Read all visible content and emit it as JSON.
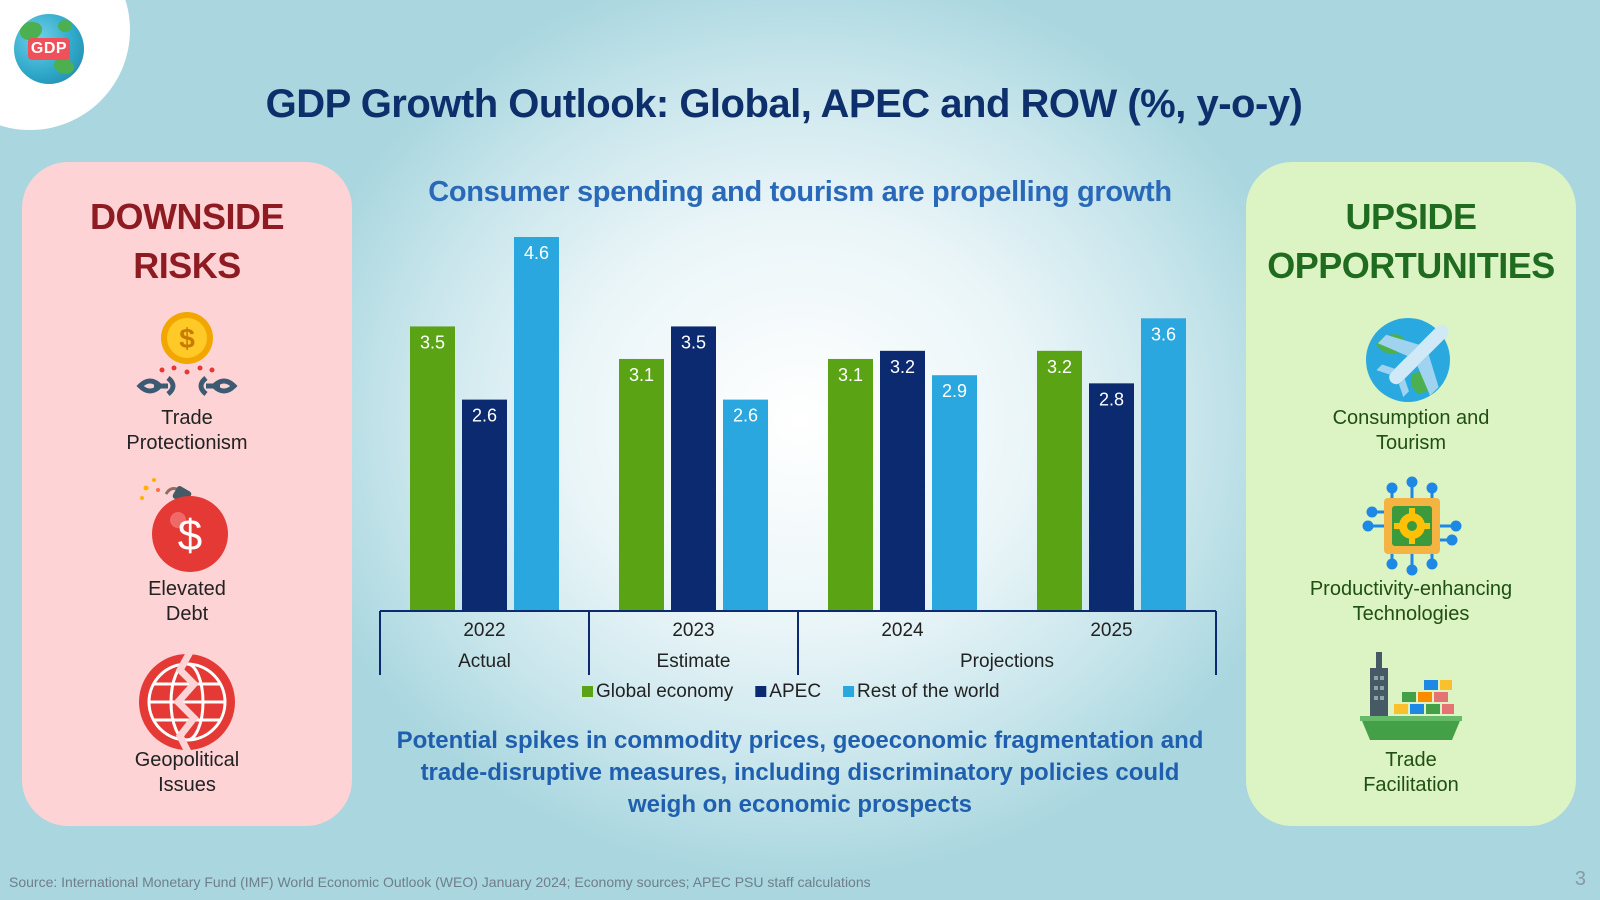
{
  "logo": {
    "text": "GDP"
  },
  "title": "GDP Growth Outlook: Global, APEC and ROW (%, y-o-y)",
  "subtitle": "Consumer spending and tourism are propelling growth",
  "downside": {
    "title_line1": "DOWNSIDE",
    "title_line2": "RISKS",
    "items": [
      {
        "line1": "Trade",
        "line2": "Protectionism",
        "icon": "broken-chain-coin-icon"
      },
      {
        "line1": "Elevated",
        "line2": "Debt",
        "icon": "dollar-bomb-icon"
      },
      {
        "line1": "Geopolitical",
        "line2": "Issues",
        "icon": "cracked-globe-icon"
      }
    ]
  },
  "upside": {
    "title_line1": "UPSIDE",
    "title_line2": "OPPORTUNITIES",
    "items": [
      {
        "line1": "Consumption and",
        "line2": "Tourism",
        "icon": "airplane-globe-icon"
      },
      {
        "line1": "Productivity-enhancing",
        "line2": "Technologies",
        "icon": "microchip-gear-icon"
      },
      {
        "line1": "Trade",
        "line2": "Facilitation",
        "icon": "cargo-ship-icon"
      }
    ]
  },
  "chart_data": {
    "type": "bar",
    "categories": [
      "2022",
      "2023",
      "2024",
      "2025"
    ],
    "category_groups": [
      {
        "label": "Actual",
        "categories": [
          "2022"
        ]
      },
      {
        "label": "Estimate",
        "categories": [
          "2023"
        ]
      },
      {
        "label": "Projections",
        "categories": [
          "2024",
          "2025"
        ]
      }
    ],
    "series": [
      {
        "name": "Global economy",
        "color": "#5aa315",
        "values": [
          3.5,
          3.1,
          3.1,
          3.2
        ]
      },
      {
        "name": "APEC",
        "color": "#0b2a6f",
        "values": [
          2.6,
          3.5,
          3.2,
          2.8
        ]
      },
      {
        "name": "Rest of the world",
        "color": "#2aa7df",
        "values": [
          4.6,
          2.6,
          2.9,
          3.6
        ]
      }
    ],
    "ylim": [
      0,
      4.6
    ],
    "legend": "bottom",
    "data_labels": true
  },
  "note": {
    "line1": "Potential spikes in commodity prices, geoeconomic fragmentation and",
    "line2": "trade-disruptive measures, including discriminatory policies could",
    "line3": "weigh on economic prospects"
  },
  "source": "Source: International Monetary Fund (IMF) World Economic Outlook (WEO) January 2024; Economy sources; APEC PSU staff calculations",
  "page_number": "3"
}
